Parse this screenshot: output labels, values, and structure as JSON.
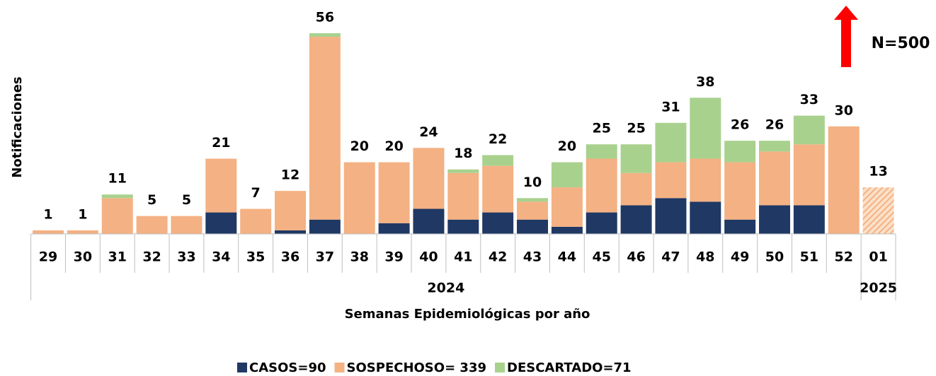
{
  "chart_data": {
    "type": "stacked_bar",
    "x_label": "Semanas Epidemiológicas por año",
    "y_label": "Notificaciones",
    "annotation": "N=500",
    "categories": [
      "29",
      "30",
      "31",
      "32",
      "33",
      "34",
      "35",
      "36",
      "37",
      "38",
      "39",
      "40",
      "41",
      "42",
      "43",
      "44",
      "45",
      "46",
      "47",
      "48",
      "49",
      "50",
      "51",
      "52",
      "01"
    ],
    "groups": [
      {
        "label": "2024",
        "count": 24,
        "hatched": false
      },
      {
        "label": "2025",
        "count": 1,
        "hatched": true
      }
    ],
    "series": [
      {
        "name": "CASOS=90",
        "color": "#203864",
        "values": [
          0,
          0,
          0,
          0,
          0,
          6,
          0,
          1,
          4,
          0,
          3,
          7,
          4,
          6,
          4,
          2,
          6,
          8,
          10,
          9,
          4,
          8,
          8,
          0,
          0
        ]
      },
      {
        "name": "SOSPECHOSO= 339",
        "color": "#f4b183",
        "values": [
          1,
          1,
          10,
          5,
          5,
          15,
          7,
          11,
          51,
          20,
          17,
          17,
          13,
          13,
          5,
          11,
          15,
          9,
          10,
          12,
          16,
          15,
          17,
          30,
          13
        ]
      },
      {
        "name": "DESCARTADO=71",
        "color": "#a9d18e",
        "values": [
          0,
          0,
          1,
          0,
          0,
          0,
          0,
          0,
          1,
          0,
          0,
          0,
          1,
          3,
          1,
          7,
          4,
          8,
          11,
          17,
          6,
          3,
          8,
          0,
          0
        ]
      }
    ],
    "totals": [
      1,
      1,
      11,
      5,
      5,
      21,
      7,
      12,
      56,
      20,
      20,
      24,
      18,
      22,
      10,
      20,
      25,
      25,
      31,
      38,
      26,
      26,
      33,
      30,
      13
    ],
    "ylim": [
      0,
      56
    ]
  }
}
